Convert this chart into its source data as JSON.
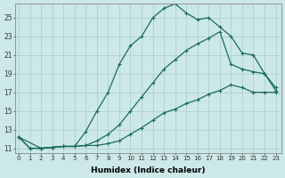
{
  "xlabel": "Humidex (Indice chaleur)",
  "bg_color": "#cce8e8",
  "grid_color": "#b0d0d0",
  "line_color": "#1a6b60",
  "xticks": [
    0,
    1,
    2,
    3,
    4,
    5,
    6,
    7,
    8,
    9,
    10,
    11,
    12,
    13,
    14,
    15,
    16,
    17,
    18,
    19,
    20,
    21,
    22,
    23
  ],
  "yticks": [
    11,
    13,
    15,
    17,
    19,
    21,
    23,
    25
  ],
  "ylim": [
    10.5,
    26.5
  ],
  "xlim": [
    -0.3,
    23.5
  ],
  "line1_x": [
    0,
    1,
    2,
    3,
    4,
    5,
    6,
    7,
    8,
    9,
    10,
    11,
    12,
    13,
    14,
    15,
    16,
    17,
    18,
    19,
    20,
    21,
    22,
    23
  ],
  "line1_y": [
    12.2,
    11.0,
    11.0,
    11.1,
    11.2,
    11.2,
    11.3,
    11.3,
    11.5,
    11.8,
    12.5,
    13.2,
    14.0,
    14.8,
    15.2,
    15.8,
    16.2,
    16.8,
    17.2,
    17.8,
    17.5,
    17.0,
    17.0,
    17.0
  ],
  "line2_x": [
    0,
    1,
    2,
    3,
    4,
    5,
    6,
    7,
    8,
    9,
    10,
    11,
    12,
    13,
    14,
    15,
    16,
    17,
    18,
    19,
    20,
    21,
    22,
    23
  ],
  "line2_y": [
    12.2,
    11.0,
    11.0,
    11.1,
    11.2,
    11.2,
    11.3,
    11.8,
    12.5,
    13.5,
    15.0,
    16.5,
    18.0,
    19.5,
    20.5,
    21.5,
    22.2,
    22.8,
    23.5,
    20.0,
    19.5,
    19.2,
    19.0,
    17.5
  ],
  "line3_x": [
    0,
    2,
    3,
    4,
    5,
    6,
    7,
    8,
    9,
    10,
    11,
    12,
    13,
    14,
    15,
    16,
    17,
    18,
    19,
    20,
    21,
    22,
    23
  ],
  "line3_y": [
    12.2,
    11.0,
    11.1,
    11.2,
    11.2,
    12.8,
    15.0,
    17.0,
    20.0,
    22.0,
    23.0,
    25.0,
    26.0,
    26.5,
    25.5,
    24.8,
    25.0,
    24.0,
    23.0,
    21.2,
    21.0,
    19.0,
    17.2
  ]
}
